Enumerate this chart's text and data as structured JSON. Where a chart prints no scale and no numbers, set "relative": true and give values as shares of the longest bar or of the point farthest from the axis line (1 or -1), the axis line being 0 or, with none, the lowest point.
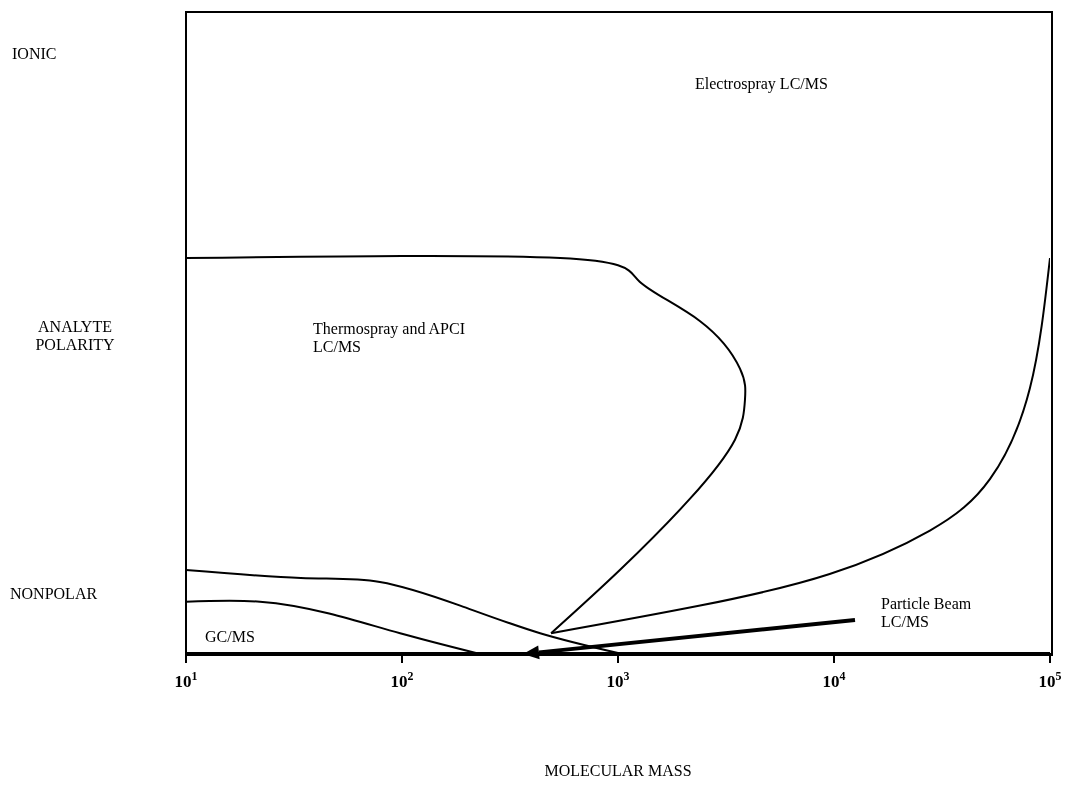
{
  "chart_data": {
    "type": "line",
    "relative": true,
    "log": "x",
    "xlabel": "MOLECULAR MASS",
    "ylabel": "ANALYTE POLARITY",
    "xlim": [
      10,
      100000
    ],
    "xticks": [
      {
        "value": 10,
        "label": "10$^{1}$"
      },
      {
        "value": 100,
        "label": "10$^{2}$"
      },
      {
        "value": 1000,
        "label": "10$^{3}$"
      },
      {
        "value": 10000,
        "label": "10$^{4}$"
      },
      {
        "value": 100000,
        "label": "10$^{5}$"
      }
    ],
    "marker": "none",
    "line_style": "solid",
    "series": [
      {
        "color": "#000000",
        "x": [
          10,
          22,
          46,
          98,
          220
        ],
        "values": [
          0.13,
          0.13,
          0.1,
          0.05,
          0
        ]
      },
      {
        "color": "#000000",
        "x": [
          10,
          34,
          79,
          186,
          436,
          1000
        ],
        "values": [
          0.21,
          0.19,
          0.18,
          0.12,
          0.05,
          0
        ]
      },
      {
        "color": "#000000",
        "x": [
          10,
          540,
          1260,
          2400,
          3670,
          3870,
          3480,
          2150,
          1020,
          490
        ],
        "values": [
          1,
          1,
          0.94,
          0.84,
          0.72,
          0.64,
          0.54,
          0.39,
          0.21,
          0.05
        ]
      },
      {
        "color": "#000000",
        "x": [
          490,
          2400,
          9550,
          27800,
          52700,
          80700,
          100000
        ],
        "values": [
          0.05,
          0.12,
          0.2,
          0.31,
          0.44,
          0.67,
          1
        ]
      }
    ],
    "annotations": [
      "IONIC",
      "NONPOLAR",
      "Electrospray LC/MS",
      "Thermospray and APCI LC/MS",
      "GC/MS",
      "Particle Beam LC/MS"
    ]
  }
}
